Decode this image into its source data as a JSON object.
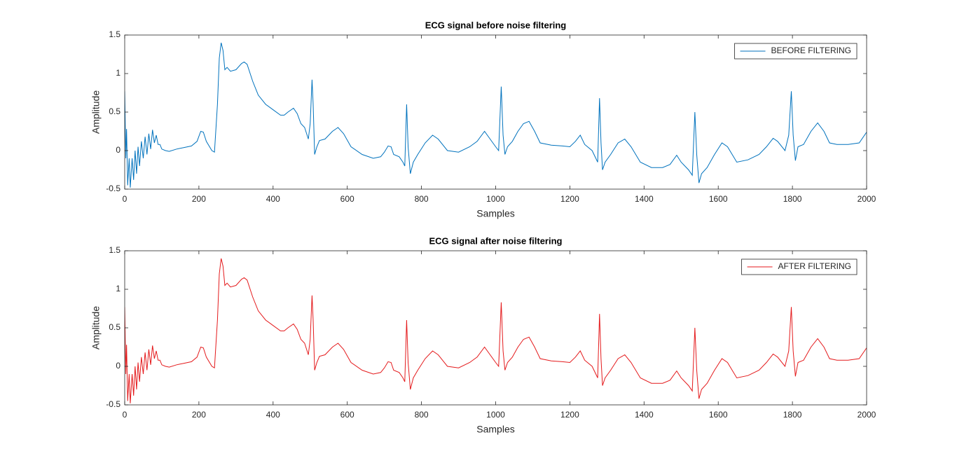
{
  "chart_data": [
    {
      "type": "line",
      "title": "ECG signal before noise filtering",
      "xlabel": "Samples",
      "ylabel": "Amplitude",
      "x": [
        0,
        3,
        5,
        8,
        12,
        15,
        20,
        24,
        28,
        32,
        36,
        40,
        45,
        50,
        55,
        60,
        65,
        70,
        75,
        80,
        85,
        90,
        95,
        100,
        110,
        120,
        140,
        160,
        180,
        195,
        205,
        212,
        220,
        235,
        242,
        250,
        255,
        260,
        265,
        270,
        276,
        285,
        300,
        315,
        322,
        330,
        345,
        360,
        380,
        400,
        420,
        430,
        440,
        455,
        465,
        475,
        485,
        495,
        500,
        505,
        508,
        512,
        518,
        525,
        540,
        560,
        575,
        590,
        610,
        640,
        670,
        690,
        700,
        710,
        718,
        725,
        740,
        750,
        755,
        760,
        764,
        770,
        778,
        790,
        810,
        830,
        845,
        870,
        900,
        930,
        950,
        970,
        985,
        1000,
        1008,
        1015,
        1020,
        1025,
        1032,
        1045,
        1060,
        1075,
        1090,
        1105,
        1120,
        1150,
        1180,
        1200,
        1215,
        1228,
        1240,
        1260,
        1270,
        1275,
        1280,
        1284,
        1288,
        1295,
        1310,
        1330,
        1348,
        1365,
        1390,
        1420,
        1450,
        1470,
        1488,
        1500,
        1520,
        1530,
        1537,
        1542,
        1548,
        1555,
        1570,
        1590,
        1610,
        1625,
        1650,
        1680,
        1710,
        1730,
        1748,
        1760,
        1780,
        1790,
        1797,
        1802,
        1808,
        1815,
        1830,
        1850,
        1868,
        1885,
        1900,
        1920,
        1950,
        1980,
        2000
      ],
      "series": [
        {
          "name": "BEFORE FILTERING",
          "color": "#0072bd",
          "values": [
            0.77,
            -0.1,
            0.28,
            -0.45,
            -0.1,
            -0.48,
            -0.1,
            -0.38,
            0.0,
            -0.3,
            0.05,
            -0.2,
            0.12,
            -0.1,
            0.18,
            -0.05,
            0.22,
            0.02,
            0.27,
            0.1,
            0.2,
            0.08,
            0.08,
            0.02,
            0.0,
            -0.01,
            0.02,
            0.04,
            0.06,
            0.12,
            0.25,
            0.24,
            0.12,
            0.0,
            -0.02,
            0.6,
            1.2,
            1.4,
            1.3,
            1.05,
            1.08,
            1.03,
            1.05,
            1.13,
            1.15,
            1.12,
            0.9,
            0.72,
            0.6,
            0.53,
            0.46,
            0.46,
            0.5,
            0.55,
            0.48,
            0.35,
            0.3,
            0.15,
            0.35,
            0.92,
            0.6,
            -0.05,
            0.05,
            0.13,
            0.15,
            0.25,
            0.3,
            0.22,
            0.05,
            -0.05,
            -0.1,
            -0.08,
            -0.02,
            0.06,
            0.05,
            -0.05,
            -0.08,
            -0.15,
            -0.2,
            0.6,
            0.05,
            -0.3,
            -0.15,
            -0.05,
            0.1,
            0.2,
            0.15,
            0.0,
            -0.02,
            0.05,
            0.12,
            0.25,
            0.15,
            0.05,
            0.0,
            0.83,
            0.2,
            -0.05,
            0.05,
            0.12,
            0.25,
            0.35,
            0.38,
            0.25,
            0.1,
            0.07,
            0.06,
            0.05,
            0.12,
            0.2,
            0.08,
            0.0,
            -0.1,
            -0.15,
            0.68,
            0.1,
            -0.25,
            -0.15,
            -0.05,
            0.1,
            0.15,
            0.05,
            -0.15,
            -0.22,
            -0.22,
            -0.18,
            -0.06,
            -0.15,
            -0.25,
            -0.32,
            0.5,
            -0.05,
            -0.42,
            -0.3,
            -0.22,
            -0.05,
            0.1,
            0.05,
            -0.15,
            -0.12,
            -0.05,
            0.05,
            0.16,
            0.12,
            0.0,
            0.2,
            0.77,
            0.2,
            -0.13,
            0.05,
            0.08,
            0.25,
            0.36,
            0.25,
            0.1,
            0.08,
            0.08,
            0.1,
            0.24
          ]
        }
      ],
      "xlim": [
        0,
        2000
      ],
      "xticks": [
        0,
        200,
        400,
        600,
        800,
        1000,
        1200,
        1400,
        1600,
        1800,
        2000
      ],
      "ylim": [
        -0.5,
        1.5
      ],
      "yticks": [
        -0.5,
        0,
        0.5,
        1,
        1.5
      ],
      "legend": "northeast",
      "grid": false
    },
    {
      "type": "line",
      "title": "ECG signal after noise filtering",
      "xlabel": "Samples",
      "ylabel": "Amplitude",
      "x": [
        0,
        3,
        5,
        8,
        12,
        15,
        20,
        24,
        28,
        32,
        36,
        40,
        45,
        50,
        55,
        60,
        65,
        70,
        75,
        80,
        85,
        90,
        95,
        100,
        110,
        120,
        140,
        160,
        180,
        195,
        205,
        212,
        220,
        235,
        242,
        250,
        255,
        260,
        265,
        270,
        276,
        285,
        300,
        315,
        322,
        330,
        345,
        360,
        380,
        400,
        420,
        430,
        440,
        455,
        465,
        475,
        485,
        495,
        500,
        505,
        508,
        512,
        518,
        525,
        540,
        560,
        575,
        590,
        610,
        640,
        670,
        690,
        700,
        710,
        718,
        725,
        740,
        750,
        755,
        760,
        764,
        770,
        778,
        790,
        810,
        830,
        845,
        870,
        900,
        930,
        950,
        970,
        985,
        1000,
        1008,
        1015,
        1020,
        1025,
        1032,
        1045,
        1060,
        1075,
        1090,
        1105,
        1120,
        1150,
        1180,
        1200,
        1215,
        1228,
        1240,
        1260,
        1270,
        1275,
        1280,
        1284,
        1288,
        1295,
        1310,
        1330,
        1348,
        1365,
        1390,
        1420,
        1450,
        1470,
        1488,
        1500,
        1520,
        1530,
        1537,
        1542,
        1548,
        1555,
        1570,
        1590,
        1610,
        1625,
        1650,
        1680,
        1710,
        1730,
        1748,
        1760,
        1780,
        1790,
        1797,
        1802,
        1808,
        1815,
        1830,
        1850,
        1868,
        1885,
        1900,
        1920,
        1950,
        1980,
        2000
      ],
      "series": [
        {
          "name": "AFTER FILTERING",
          "color": "#e41a1c",
          "values": [
            0.77,
            -0.1,
            0.28,
            -0.45,
            -0.1,
            -0.48,
            -0.1,
            -0.38,
            0.0,
            -0.3,
            0.05,
            -0.2,
            0.12,
            -0.1,
            0.18,
            -0.05,
            0.22,
            0.02,
            0.27,
            0.1,
            0.2,
            0.08,
            0.08,
            0.02,
            0.0,
            -0.01,
            0.02,
            0.04,
            0.06,
            0.12,
            0.25,
            0.24,
            0.12,
            0.0,
            -0.02,
            0.6,
            1.2,
            1.4,
            1.3,
            1.05,
            1.08,
            1.03,
            1.05,
            1.13,
            1.15,
            1.12,
            0.9,
            0.72,
            0.6,
            0.53,
            0.46,
            0.46,
            0.5,
            0.55,
            0.48,
            0.35,
            0.3,
            0.15,
            0.35,
            0.92,
            0.6,
            -0.05,
            0.05,
            0.13,
            0.15,
            0.25,
            0.3,
            0.22,
            0.05,
            -0.05,
            -0.1,
            -0.08,
            -0.02,
            0.06,
            0.05,
            -0.05,
            -0.08,
            -0.15,
            -0.2,
            0.6,
            0.05,
            -0.3,
            -0.15,
            -0.05,
            0.1,
            0.2,
            0.15,
            0.0,
            -0.02,
            0.05,
            0.12,
            0.25,
            0.15,
            0.05,
            0.0,
            0.83,
            0.2,
            -0.05,
            0.05,
            0.12,
            0.25,
            0.35,
            0.38,
            0.25,
            0.1,
            0.07,
            0.06,
            0.05,
            0.12,
            0.2,
            0.08,
            0.0,
            -0.1,
            -0.15,
            0.68,
            0.1,
            -0.25,
            -0.15,
            -0.05,
            0.1,
            0.15,
            0.05,
            -0.15,
            -0.22,
            -0.22,
            -0.18,
            -0.06,
            -0.15,
            -0.25,
            -0.32,
            0.5,
            -0.05,
            -0.42,
            -0.3,
            -0.22,
            -0.05,
            0.1,
            0.05,
            -0.15,
            -0.12,
            -0.05,
            0.05,
            0.16,
            0.12,
            0.0,
            0.2,
            0.77,
            0.2,
            -0.13,
            0.05,
            0.08,
            0.25,
            0.36,
            0.25,
            0.1,
            0.08,
            0.08,
            0.1,
            0.24
          ]
        }
      ],
      "xlim": [
        0,
        2000
      ],
      "xticks": [
        0,
        200,
        400,
        600,
        800,
        1000,
        1200,
        1400,
        1600,
        1800,
        2000
      ],
      "ylim": [
        -0.5,
        1.5
      ],
      "yticks": [
        -0.5,
        0,
        0.5,
        1,
        1.5
      ],
      "legend": "northeast",
      "grid": false
    }
  ]
}
